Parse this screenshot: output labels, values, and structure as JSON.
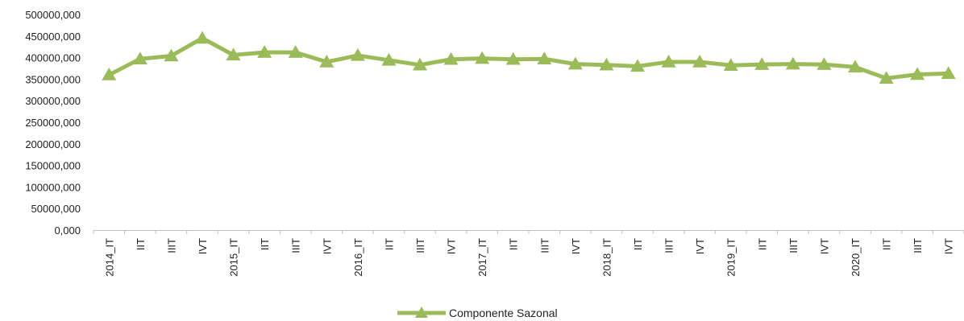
{
  "chart_data": {
    "type": "line",
    "categories": [
      "2014_IT",
      "IIT",
      "IIIT",
      "IVT",
      "2015_IT",
      "IIT",
      "IIIT",
      "IVT",
      "2016_IT",
      "IIT",
      "IIIT",
      "IVT",
      "2017_IT",
      "IIT",
      "IIIT",
      "IVT",
      "2018_IT",
      "IIT",
      "IIIT",
      "IVT",
      "2019_IT",
      "IIT",
      "IIIT",
      "IVT",
      "2020_IT",
      "IIT",
      "IIIT",
      "IVT"
    ],
    "series": [
      {
        "name": "Componente Sazonal",
        "values": [
          360000,
          397000,
          404000,
          445000,
          406000,
          412000,
          412000,
          390000,
          405000,
          394000,
          383000,
          396000,
          398000,
          396000,
          397000,
          385000,
          383000,
          380000,
          390000,
          390000,
          382000,
          384000,
          385000,
          384000,
          378000,
          352000,
          361000,
          363000
        ]
      }
    ],
    "y_ticks": [
      "0,000",
      "50000,000",
      "100000,000",
      "150000,000",
      "200000,000",
      "250000,000",
      "300000,000",
      "350000,000",
      "400000,000",
      "450000,000",
      "500000,000"
    ],
    "ylim": [
      0,
      500000
    ],
    "legend_position": "bottom",
    "grid": false,
    "color": "#9BBB59"
  }
}
